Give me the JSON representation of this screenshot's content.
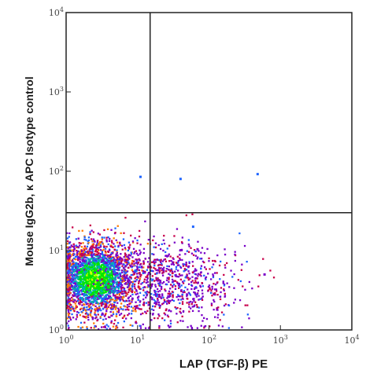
{
  "chart_data": {
    "type": "scatter",
    "subtype": "flow-cytometry-density-dot-plot",
    "xlabel": "LAP (TGF-β) PE",
    "ylabel": "Mouse IgG2b, κ APC Isotype control",
    "x_scale": "log",
    "y_scale": "log",
    "xlim": [
      1,
      10000
    ],
    "ylim": [
      1,
      10000
    ],
    "x_ticks": [
      {
        "base": "10",
        "exp": "0",
        "value": 1
      },
      {
        "base": "10",
        "exp": "1",
        "value": 10
      },
      {
        "base": "10",
        "exp": "2",
        "value": 100
      },
      {
        "base": "10",
        "exp": "3",
        "value": 1000
      },
      {
        "base": "10",
        "exp": "4",
        "value": 10000
      }
    ],
    "y_ticks": [
      {
        "base": "10",
        "exp": "0",
        "value": 1
      },
      {
        "base": "10",
        "exp": "1",
        "value": 10
      },
      {
        "base": "10",
        "exp": "2",
        "value": 100
      },
      {
        "base": "10",
        "exp": "3",
        "value": 1000
      },
      {
        "base": "10",
        "exp": "4",
        "value": 10000
      }
    ],
    "quadrant_gates": {
      "x": 15,
      "y": 30
    },
    "density_colors": [
      "#00e600",
      "#ccff00",
      "#00b0b0",
      "#1e64ff",
      "#7a00c8",
      "#c8004a",
      "#ff7a00"
    ],
    "populations": [
      {
        "name": "main",
        "center": [
          2.5,
          4.5
        ],
        "count": 2600
      },
      {
        "name": "spread",
        "center": [
          25,
          4
        ],
        "count": 900
      }
    ],
    "outliers": [
      [
        11,
        85
      ],
      [
        40,
        80
      ],
      [
        480,
        92
      ],
      [
        60,
        20
      ],
      [
        600,
        5
      ]
    ],
    "grid": false,
    "legend": "none"
  }
}
